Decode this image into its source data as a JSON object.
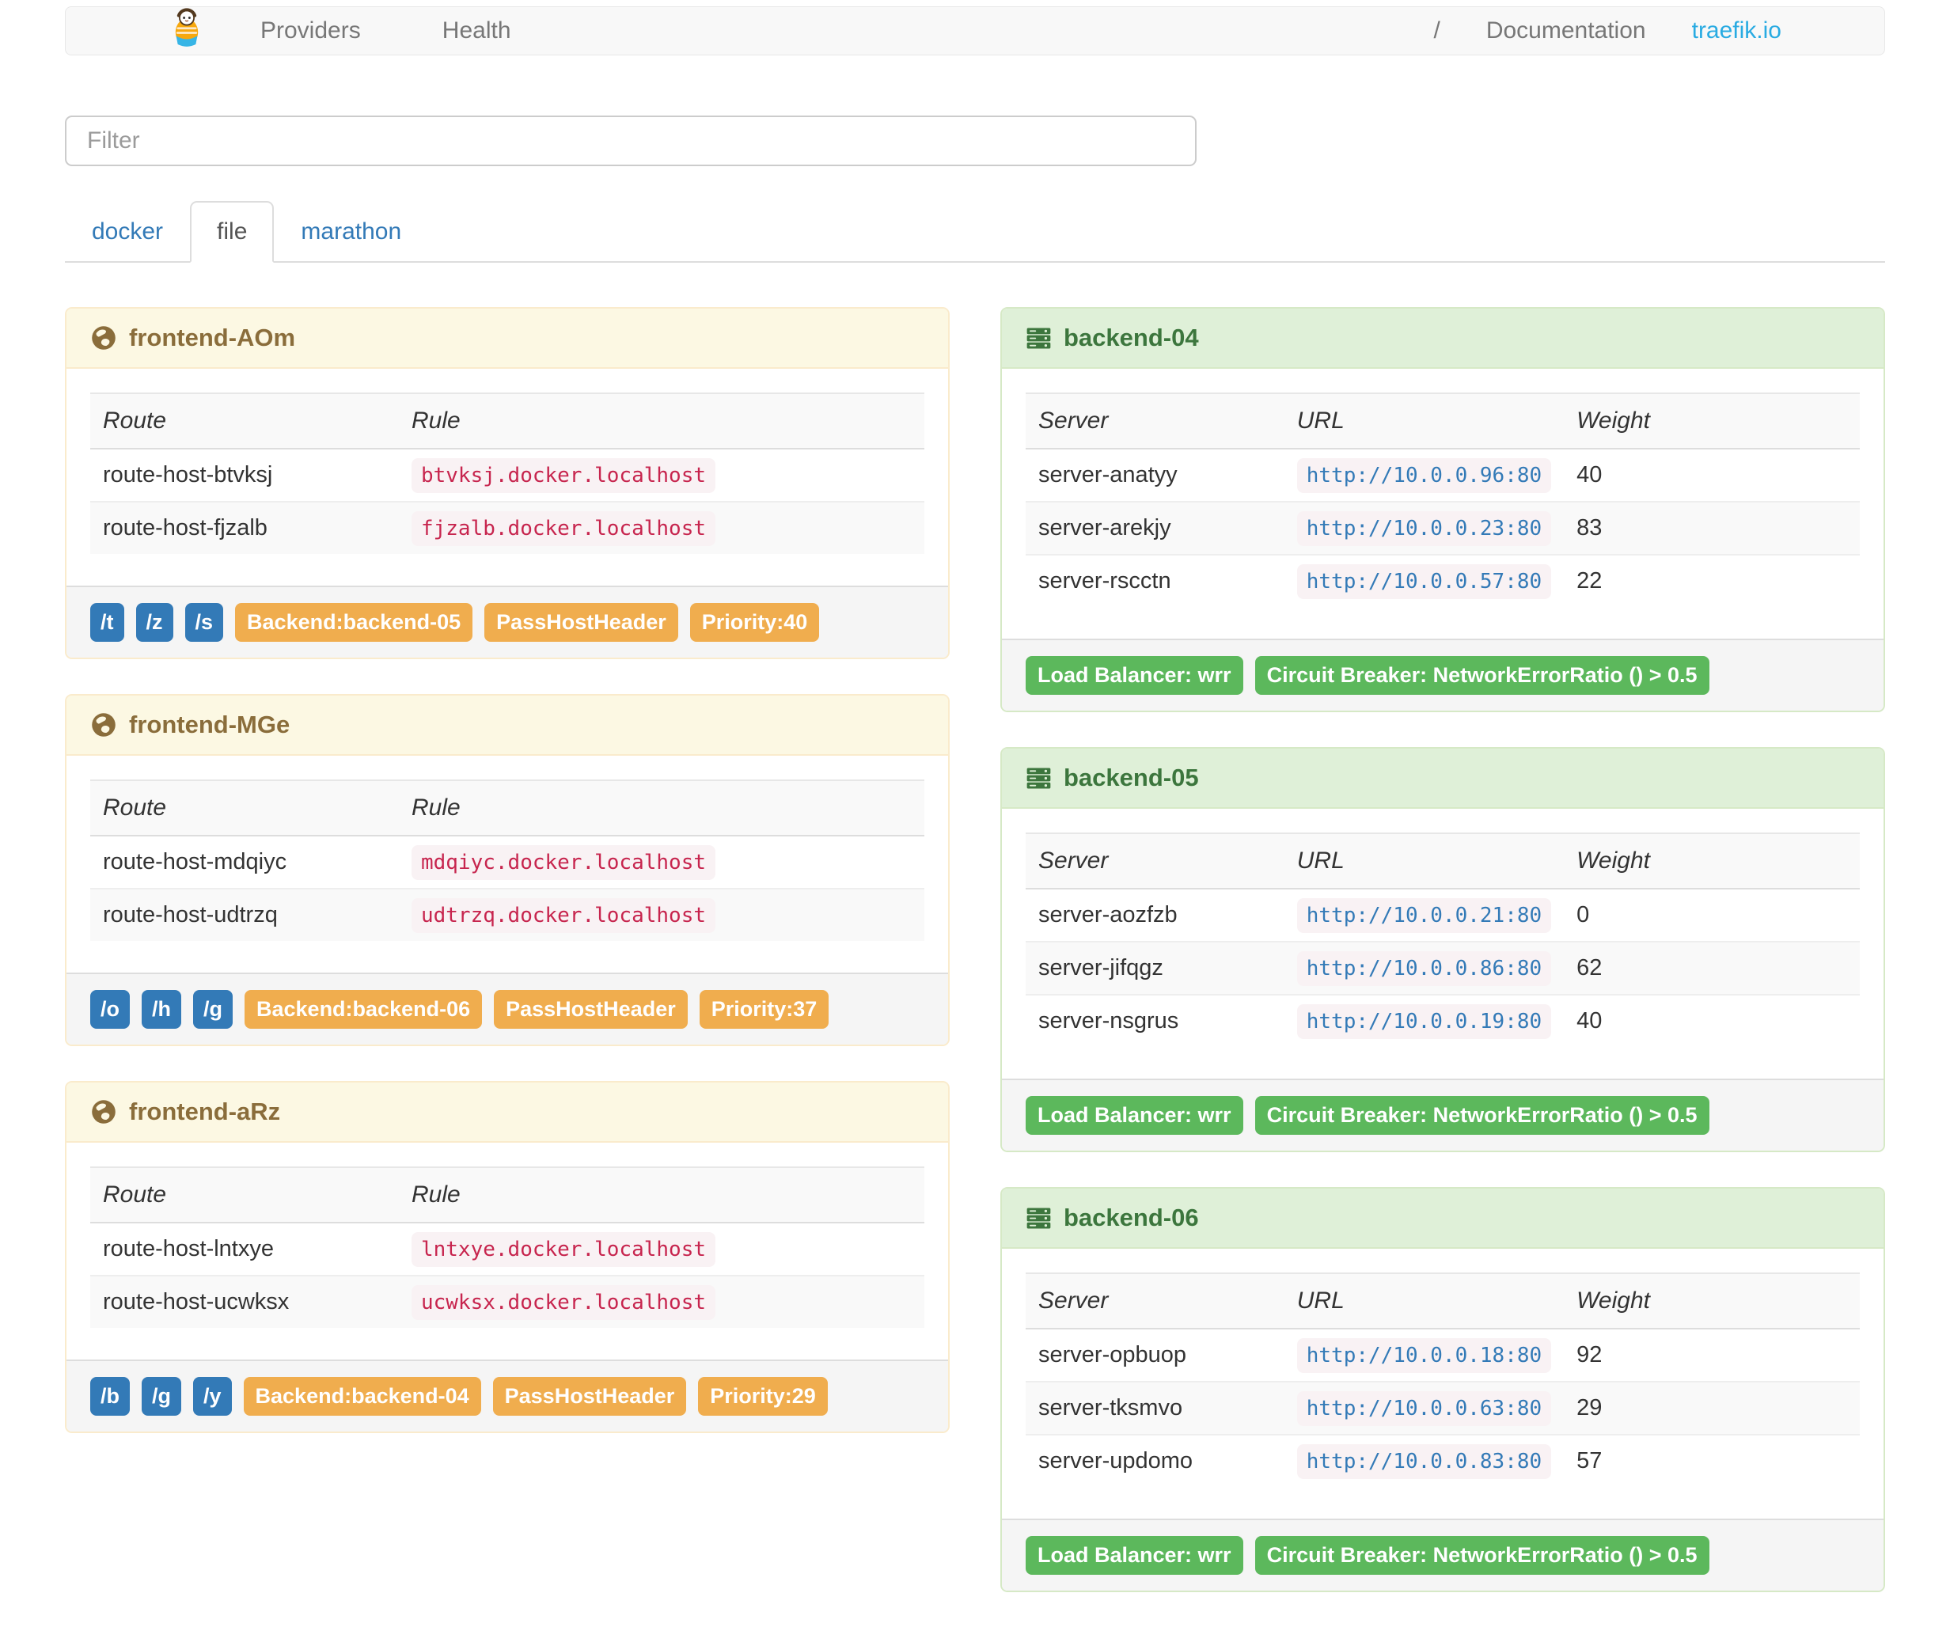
{
  "navbar": {
    "links_left": [
      "Providers",
      "Health"
    ],
    "links_right": [
      "/",
      "Documentation",
      "traefik.io"
    ]
  },
  "filter": {
    "placeholder": "Filter"
  },
  "tabs": [
    {
      "label": "docker",
      "active": false
    },
    {
      "label": "file",
      "active": true
    },
    {
      "label": "marathon",
      "active": false
    }
  ],
  "frontends": [
    {
      "name": "frontend-AOm",
      "columns": [
        "Route",
        "Rule"
      ],
      "routes": [
        {
          "route": "route-host-btvksj",
          "rule": "btvksj.docker.localhost"
        },
        {
          "route": "route-host-fjzalb",
          "rule": "fjzalb.docker.localhost"
        }
      ],
      "paths": [
        "/t",
        "/z",
        "/s"
      ],
      "tags": [
        "Backend:backend-05",
        "PassHostHeader",
        "Priority:40"
      ]
    },
    {
      "name": "frontend-MGe",
      "columns": [
        "Route",
        "Rule"
      ],
      "routes": [
        {
          "route": "route-host-mdqiyc",
          "rule": "mdqiyc.docker.localhost"
        },
        {
          "route": "route-host-udtrzq",
          "rule": "udtrzq.docker.localhost"
        }
      ],
      "paths": [
        "/o",
        "/h",
        "/g"
      ],
      "tags": [
        "Backend:backend-06",
        "PassHostHeader",
        "Priority:37"
      ]
    },
    {
      "name": "frontend-aRz",
      "columns": [
        "Route",
        "Rule"
      ],
      "routes": [
        {
          "route": "route-host-lntxye",
          "rule": "lntxye.docker.localhost"
        },
        {
          "route": "route-host-ucwksx",
          "rule": "ucwksx.docker.localhost"
        }
      ],
      "paths": [
        "/b",
        "/g",
        "/y"
      ],
      "tags": [
        "Backend:backend-04",
        "PassHostHeader",
        "Priority:29"
      ]
    }
  ],
  "backends": [
    {
      "name": "backend-04",
      "columns": [
        "Server",
        "URL",
        "Weight"
      ],
      "servers": [
        {
          "server": "server-anatyy",
          "url": "http://10.0.0.96:80",
          "weight": "40"
        },
        {
          "server": "server-arekjy",
          "url": "http://10.0.0.23:80",
          "weight": "83"
        },
        {
          "server": "server-rscctn",
          "url": "http://10.0.0.57:80",
          "weight": "22"
        }
      ],
      "tags": [
        "Load Balancer: wrr",
        "Circuit Breaker: NetworkErrorRatio () > 0.5"
      ]
    },
    {
      "name": "backend-05",
      "columns": [
        "Server",
        "URL",
        "Weight"
      ],
      "servers": [
        {
          "server": "server-aozfzb",
          "url": "http://10.0.0.21:80",
          "weight": "0"
        },
        {
          "server": "server-jifqgz",
          "url": "http://10.0.0.86:80",
          "weight": "62"
        },
        {
          "server": "server-nsgrus",
          "url": "http://10.0.0.19:80",
          "weight": "40"
        }
      ],
      "tags": [
        "Load Balancer: wrr",
        "Circuit Breaker: NetworkErrorRatio () > 0.5"
      ]
    },
    {
      "name": "backend-06",
      "columns": [
        "Server",
        "URL",
        "Weight"
      ],
      "servers": [
        {
          "server": "server-opbuop",
          "url": "http://10.0.0.18:80",
          "weight": "92"
        },
        {
          "server": "server-tksmvo",
          "url": "http://10.0.0.63:80",
          "weight": "29"
        },
        {
          "server": "server-updomo",
          "url": "http://10.0.0.83:80",
          "weight": "57"
        }
      ],
      "tags": [
        "Load Balancer: wrr",
        "Circuit Breaker: NetworkErrorRatio () > 0.5"
      ]
    }
  ],
  "colors": {
    "tab_link": "#337ab7",
    "brand_blue": "#29abe2",
    "warning_bg": "#fcf8e3",
    "warning_text": "#8a6d3b",
    "success_bg": "#dff0d8",
    "success_text": "#3c763d",
    "label_blue": "#337ab7",
    "label_orange": "#f0ad4e",
    "label_green": "#5cb85c",
    "code_pink": "#c7254e",
    "code_bg": "#f9f2f4"
  },
  "icons": {
    "brand": "traefik-logo",
    "frontend": "globe-icon",
    "backend": "server-icon"
  }
}
